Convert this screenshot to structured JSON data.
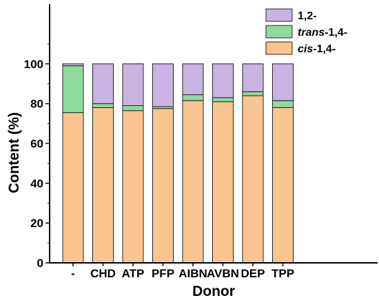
{
  "chart_data": {
    "type": "stacked-bar",
    "categories": [
      "-",
      "CHD",
      "ATP",
      "PFP",
      "AIBN",
      "AVBN",
      "DEP",
      "TPP"
    ],
    "series": [
      {
        "name": "cis-1,4-",
        "name_prefix": "cis",
        "name_suffix": "-1,4-",
        "color": "#FAC590",
        "values": [
          75.5,
          78,
          76.5,
          77.5,
          81.5,
          81,
          84,
          78
        ]
      },
      {
        "name": "trans-1,4-",
        "name_prefix": "trans",
        "name_suffix": "-1,4-",
        "color": "#8EDB9E",
        "values": [
          23.5,
          2,
          2.5,
          1,
          3,
          2,
          2,
          3.5
        ]
      },
      {
        "name": "1,2-",
        "name_prefix": "",
        "name_suffix": "1,2-",
        "color": "#C9B3E2",
        "values": [
          1,
          20,
          21,
          21.5,
          15.5,
          17,
          14,
          18.5
        ]
      }
    ],
    "xlabel": "Donor",
    "ylabel": "Content (%)",
    "ylim": [
      0,
      130
    ],
    "yticks": [
      0,
      20,
      40,
      60,
      80,
      100
    ],
    "grid": false,
    "legend_position": "top-right"
  }
}
